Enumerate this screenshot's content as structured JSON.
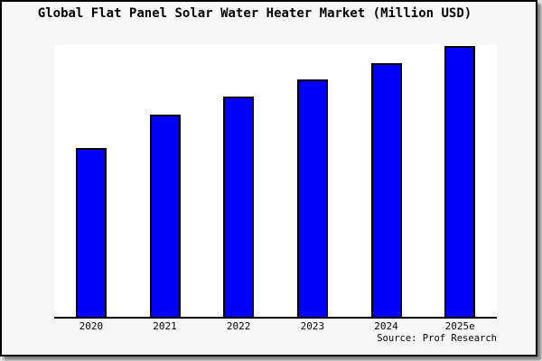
{
  "title": "Global Flat Panel Solar Water Heater Market (Million USD)",
  "source_note": "Source: Prof Research",
  "chart_data": {
    "type": "bar",
    "title": "Global Flat Panel Solar Water Heater Market (Million USD)",
    "categories": [
      "2020",
      "2021",
      "2022",
      "2023",
      "2024",
      "2025e"
    ],
    "values": [
      62.5,
      74.8,
      81.4,
      87.7,
      93.7,
      100
    ],
    "values_note": "y-axis has no tick labels; values are relative bar heights as % of the 2025e bar",
    "xlabel": "",
    "ylabel": "",
    "ylim": [
      0,
      100.7
    ],
    "grid": false,
    "legend": false,
    "bar_color": "#0000fa",
    "bar_edge_color": "#000000",
    "figure_background": "#f7f7f7",
    "plot_background": "#ffffff",
    "source": "Source: Prof Research"
  }
}
